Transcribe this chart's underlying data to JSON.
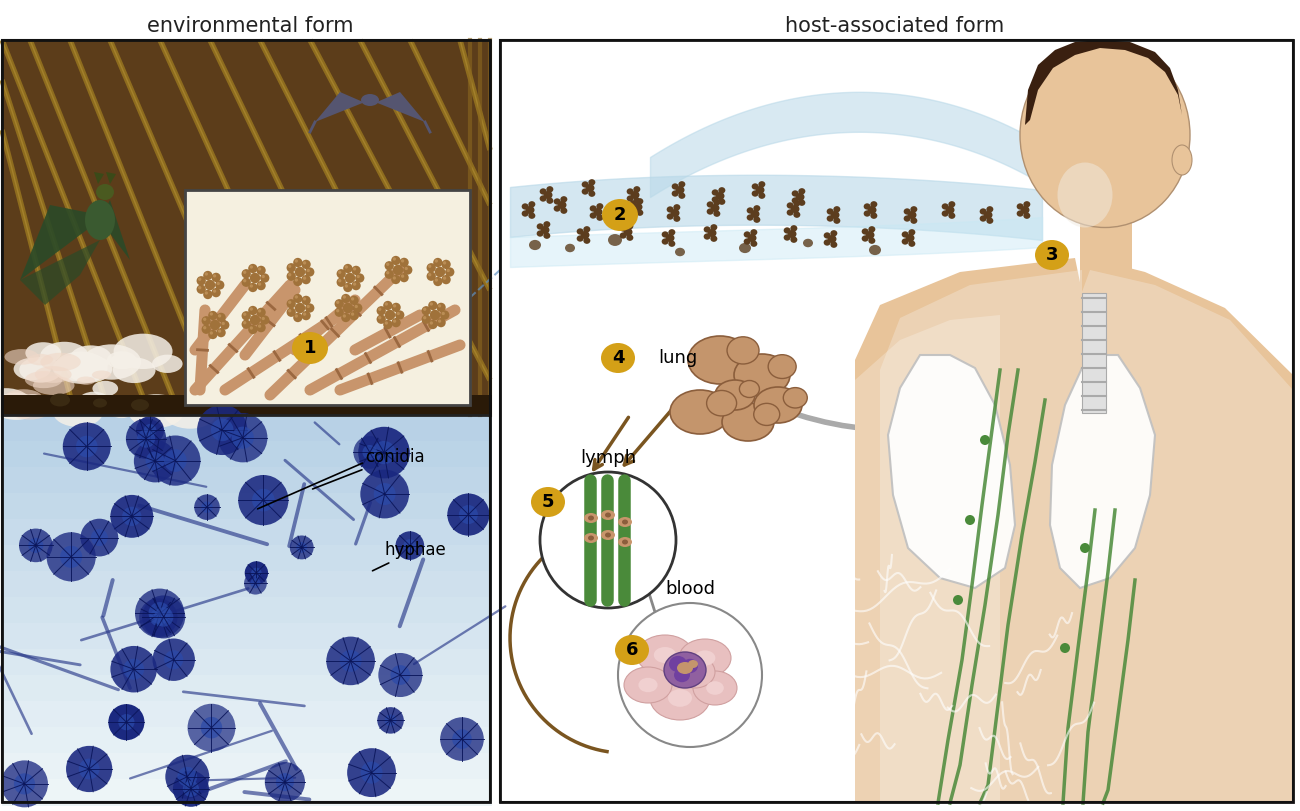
{
  "title_left": "environmental form",
  "title_right": "host-associated form",
  "labels": {
    "conidia": "conidia",
    "hyphae": "hyphae",
    "lung": "lung",
    "lymph": "lymph",
    "blood": "blood"
  },
  "numbers": [
    "1",
    "2",
    "3",
    "4",
    "5",
    "6"
  ],
  "number_bg_color": "#D4A017",
  "number_text_color": "#000000",
  "bg_color": "#FFFFFF",
  "attic_bg": "#5C3D1A",
  "wood_plank_color": "#8B6914",
  "insulation_color": "#F5F0E8",
  "ground_color": "#2A1A08",
  "bat_color_hanging": "#3A5A3A",
  "bat_color_flying": "#555570",
  "inset_bg": "#F5F0E0",
  "hyphae_color": "#C8956C",
  "conidia_color": "#A0723A",
  "micro_bg": "#C0D0E0",
  "air_stream_color": "#B8D8E8",
  "spore_color": "#5C3D1E",
  "skin_color": "#E8C49A",
  "hair_color": "#3A2010",
  "lung_color": "#FFFFFF",
  "lymph_green": "#4A8A3A",
  "yeast_fill": "#C4956C",
  "yeast_edge": "#8B5E3C",
  "arrow_gray": "#AAAAAA",
  "arrow_brown": "#7A5520",
  "lymph_circle_edge": "#333333",
  "blood_rbc": "#E8C0C0",
  "blood_wbc": "#9060A0",
  "blood_label": "blood",
  "divx": 500,
  "figsize": [
    13.0,
    8.11
  ],
  "dpi": 100
}
